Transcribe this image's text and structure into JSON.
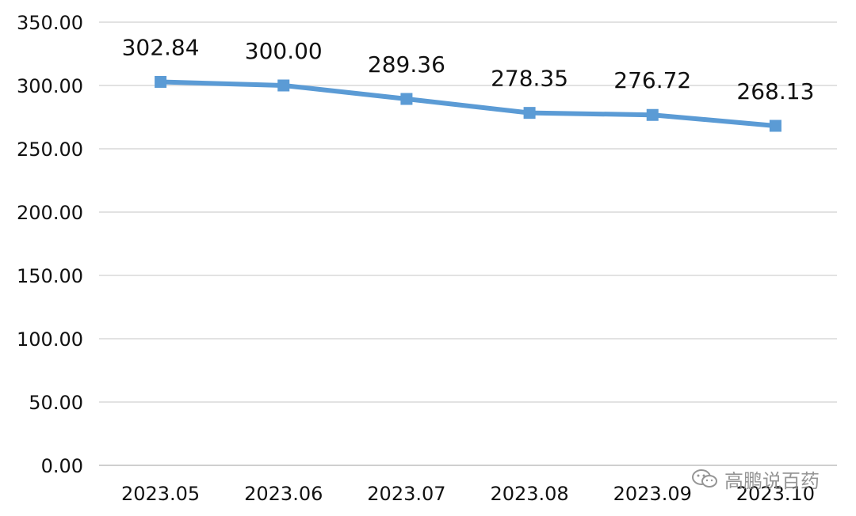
{
  "chart_data": {
    "type": "line",
    "categories": [
      "2023.05",
      "2023.06",
      "2023.07",
      "2023.08",
      "2023.09",
      "2023.10"
    ],
    "values": [
      302.84,
      300.0,
      289.36,
      278.35,
      276.72,
      268.13
    ],
    "data_labels": [
      "302.84",
      "300.00",
      "289.36",
      "278.35",
      "276.72",
      "268.13"
    ],
    "y_ticks": [
      "0.00",
      "50.00",
      "100.00",
      "150.00",
      "200.00",
      "250.00",
      "300.00",
      "350.00"
    ],
    "ylim": [
      0,
      350
    ],
    "grid": true,
    "marker": "square",
    "line_color": "#5B9BD5",
    "grid_color": "#D9D9D9",
    "axis_color": "#BFBFBF"
  },
  "watermark": {
    "text": "高鹏说百药",
    "icon": "wechat-icon"
  }
}
